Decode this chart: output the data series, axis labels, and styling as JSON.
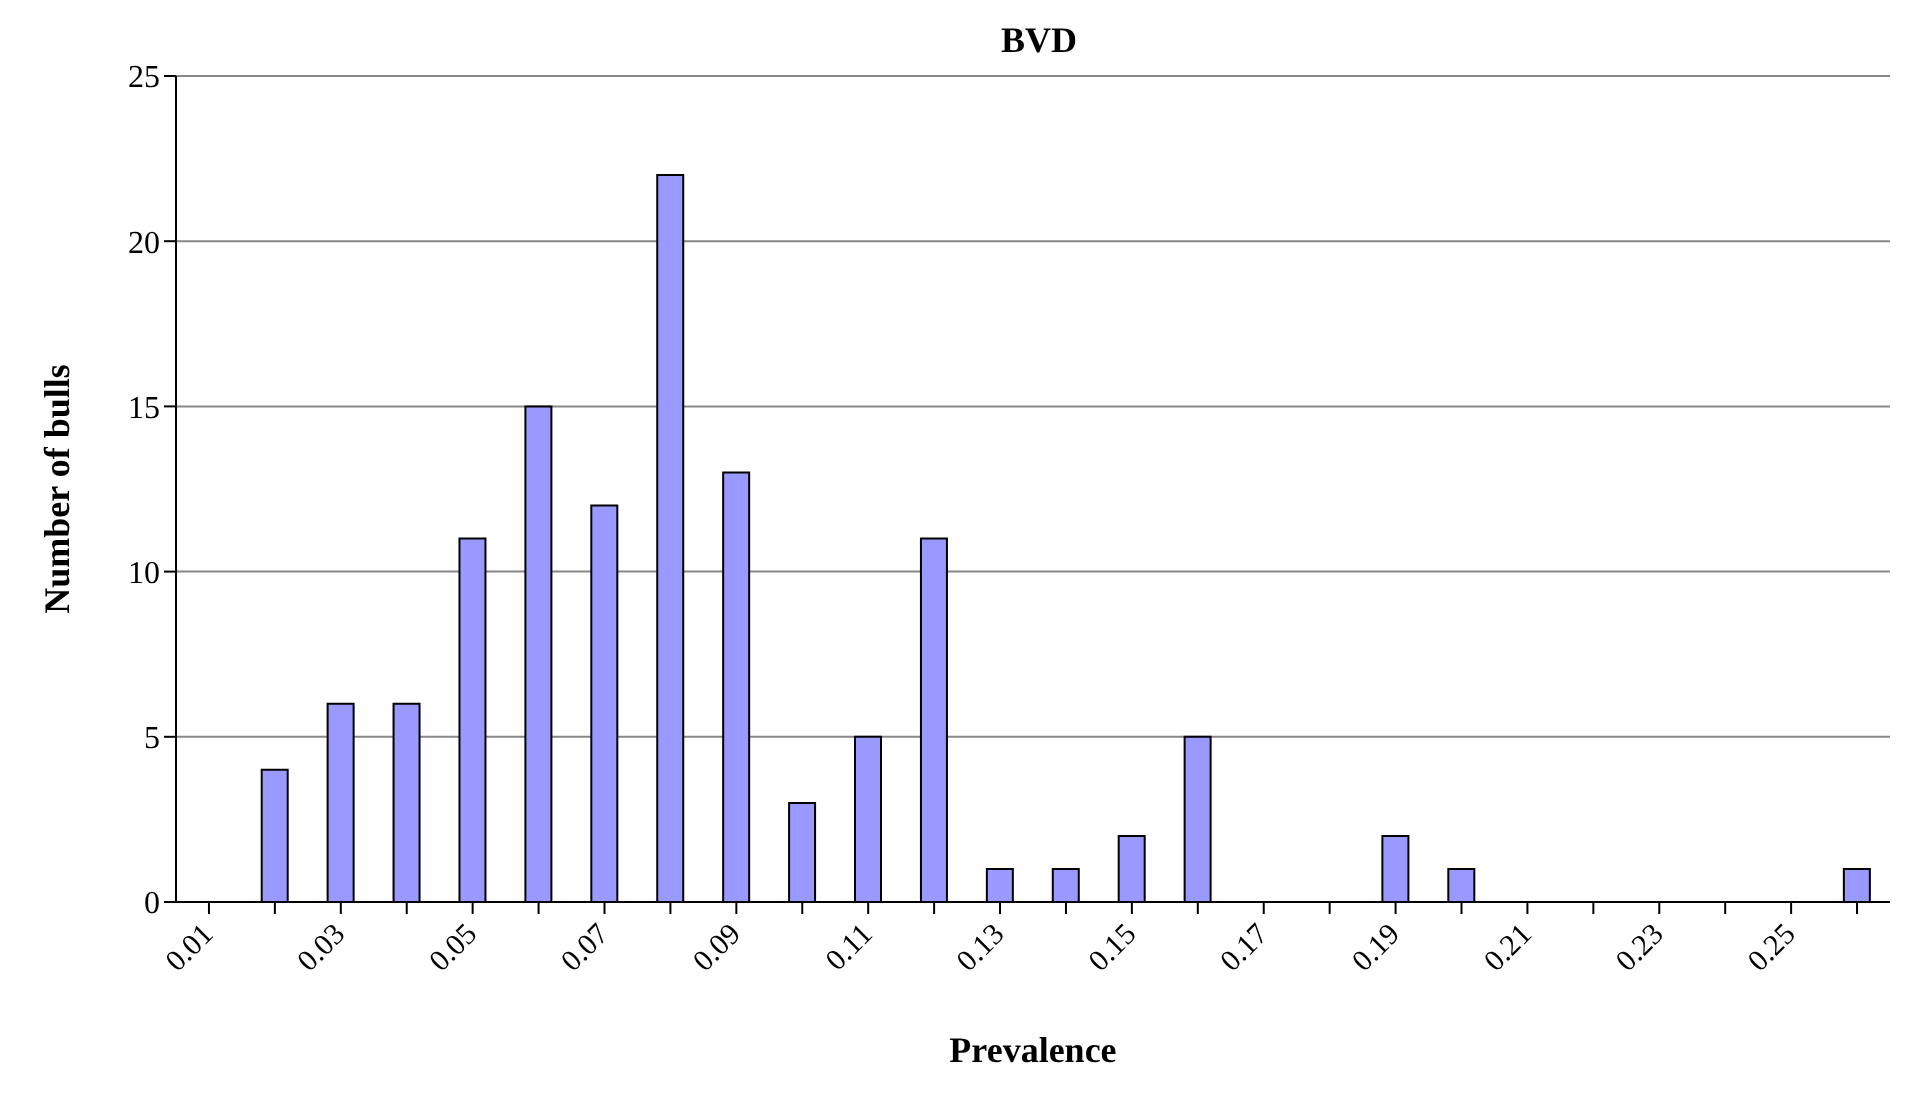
{
  "chart_data": {
    "type": "bar",
    "title": "BVD",
    "xlabel": "Prevalence",
    "ylabel": "Number of bulls",
    "categories": [
      "0.01",
      null,
      "0.03",
      null,
      "0.05",
      null,
      "0.07",
      null,
      "0.09",
      null,
      "0.11",
      null,
      "0.13",
      null,
      "0.15",
      null,
      "0.17",
      null,
      "0.19",
      null,
      "0.21",
      null,
      "0.23",
      null,
      "0.25",
      null
    ],
    "values": [
      0,
      4,
      6,
      6,
      11,
      15,
      12,
      22,
      13,
      3,
      5,
      11,
      1,
      1,
      2,
      5,
      0,
      0,
      2,
      1,
      0,
      0,
      0,
      0,
      0,
      1
    ],
    "color": "#9999ff",
    "ylim": [
      0,
      25
    ],
    "yticks": [
      0,
      5,
      10,
      15,
      20,
      25
    ],
    "grid": "y"
  }
}
